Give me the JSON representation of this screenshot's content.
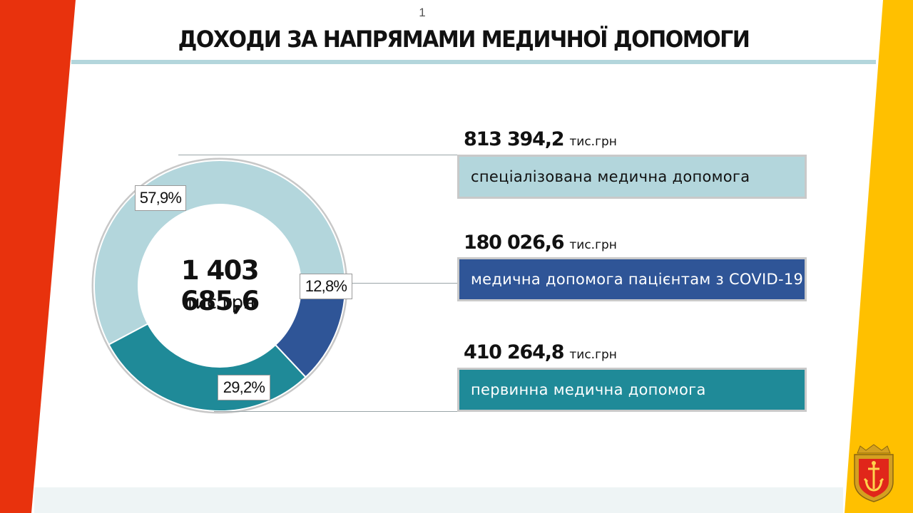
{
  "title": "ДОХОДИ ЗА НАПРЯМАМИ МЕДИЧНОЇ ДОПОМОГИ",
  "page_number": "1",
  "colors": {
    "left_band": "#e8320d",
    "right_band": "#ffc000",
    "slice_specialized": "#b3d6dc",
    "slice_covid": "#2f5597",
    "slice_primary": "#1f8a98"
  },
  "chart_data": {
    "type": "pie",
    "style": "donut",
    "total": "1 403 685,6",
    "total_unit": "тис.грн",
    "slices": [
      {
        "label": "спеціалізована медична допомога",
        "value_text": "813 394,2",
        "value": 813394.2,
        "unit": "тис.грн",
        "percent": 57.9,
        "percent_label": "57,9%",
        "color": "#b3d6dc"
      },
      {
        "label": "медична допомога пацієнтам з COVID-19",
        "value_text": "180 026,6",
        "value": 180026.6,
        "unit": "тис.грн",
        "percent": 12.8,
        "percent_label": "12,8%",
        "color": "#2f5597"
      },
      {
        "label": "первинна медична допомога",
        "value_text": "410 264,8",
        "value": 410264.8,
        "unit": "тис.грн",
        "percent": 29.2,
        "percent_label": "29,2%",
        "color": "#1f8a98"
      }
    ]
  },
  "emblem_icon": "city-coat-of-arms-icon"
}
